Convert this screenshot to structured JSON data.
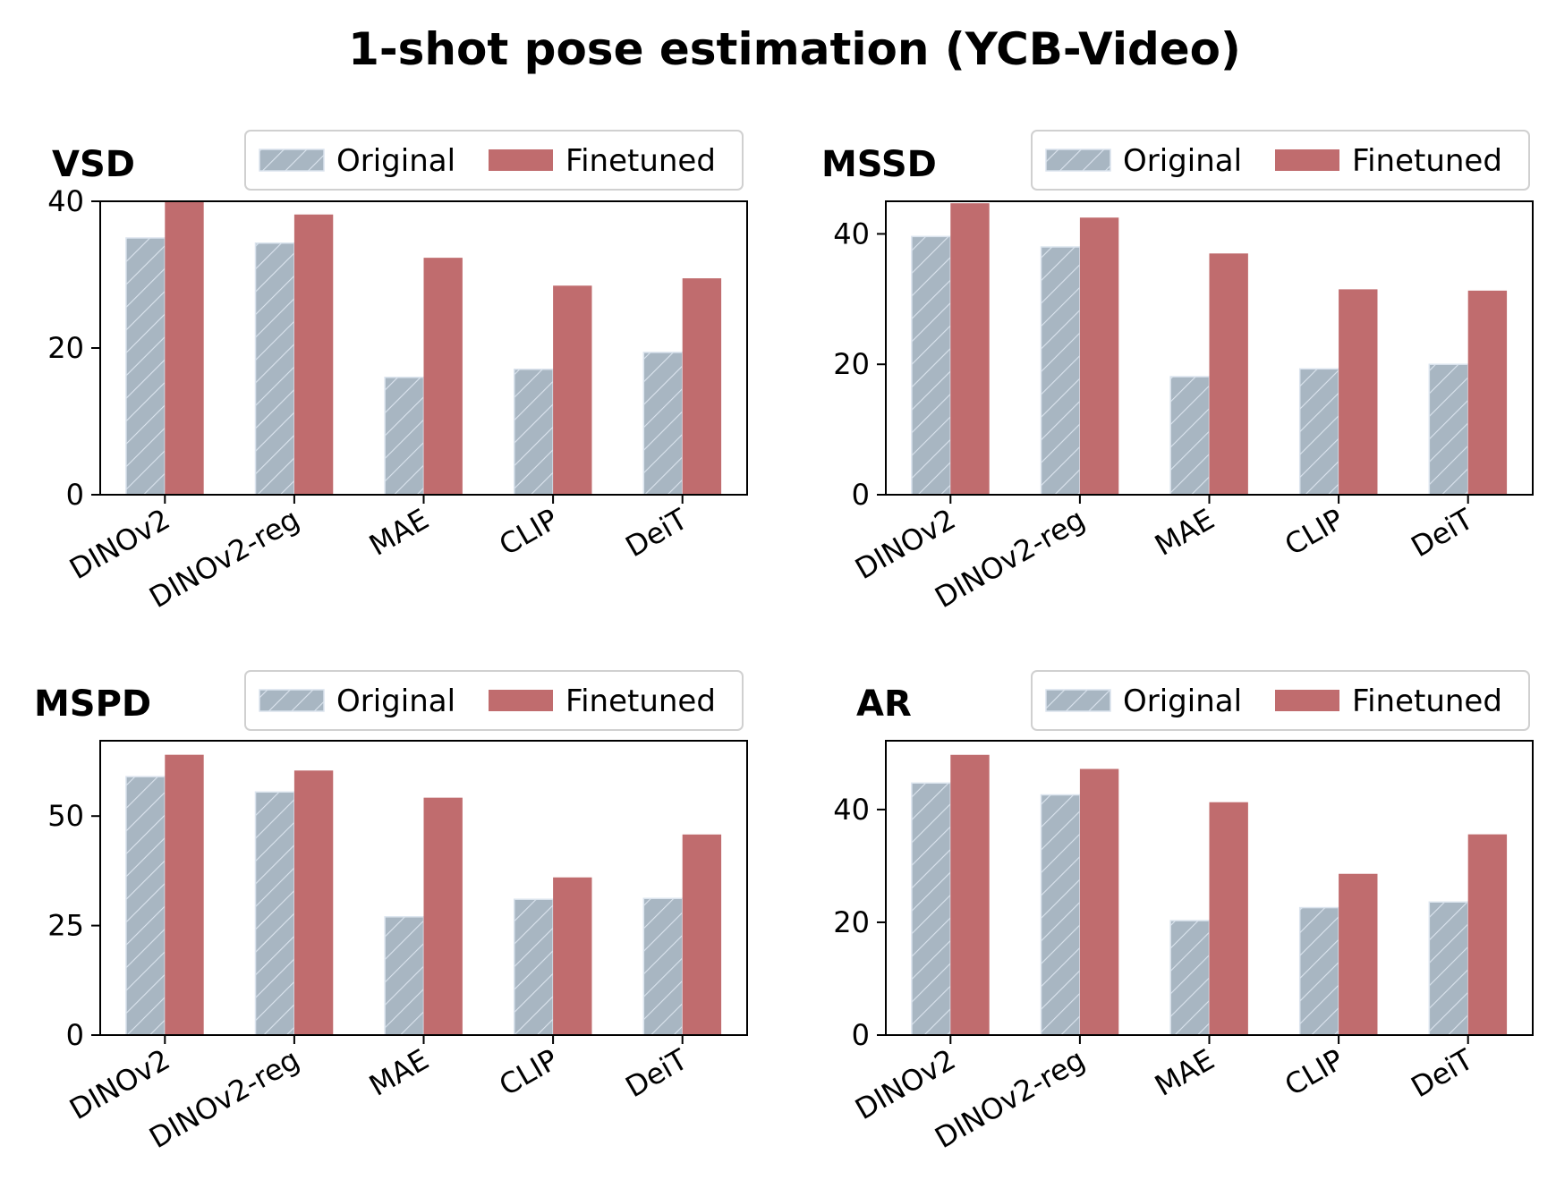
{
  "figure": {
    "title": "1-shot pose estimation (YCB-Video)"
  },
  "colors": {
    "original": "#a8b6c2",
    "original_edge": "#dbe4ee",
    "finetuned": "#c06c6e"
  },
  "legend": {
    "labels": [
      "Original",
      "Finetuned"
    ],
    "placement": "top-right (above each panel)"
  },
  "chart_data": [
    {
      "type": "bar",
      "title": "VSD",
      "categories": [
        "DINOv2",
        "DINOv2-reg",
        "MAE",
        "CLIP",
        "DeiT"
      ],
      "series": [
        {
          "name": "Original",
          "values": [
            35.0,
            34.3,
            16.0,
            17.1,
            19.4
          ]
        },
        {
          "name": "Finetuned",
          "values": [
            40.0,
            38.2,
            32.3,
            28.5,
            29.5
          ]
        }
      ],
      "ylim": [
        0,
        40.0
      ],
      "yticks": [
        0,
        20,
        40
      ]
    },
    {
      "type": "bar",
      "title": "MSSD",
      "categories": [
        "DINOv2",
        "DINOv2-reg",
        "MAE",
        "CLIP",
        "DeiT"
      ],
      "series": [
        {
          "name": "Original",
          "values": [
            39.6,
            38.0,
            18.1,
            19.3,
            20.0
          ]
        },
        {
          "name": "Finetuned",
          "values": [
            44.7,
            42.5,
            37.0,
            31.5,
            31.3
          ]
        }
      ],
      "ylim": [
        0,
        45.0
      ],
      "yticks": [
        0,
        20,
        40
      ]
    },
    {
      "type": "bar",
      "title": "MSPD",
      "categories": [
        "DINOv2",
        "DINOv2-reg",
        "MAE",
        "CLIP",
        "DeiT"
      ],
      "series": [
        {
          "name": "Original",
          "values": [
            59.0,
            55.5,
            27.0,
            31.0,
            31.2
          ]
        },
        {
          "name": "Finetuned",
          "values": [
            64.0,
            60.4,
            54.2,
            36.0,
            45.8
          ]
        }
      ],
      "ylim": [
        0,
        67.2
      ],
      "yticks": [
        0,
        25,
        50
      ]
    },
    {
      "type": "bar",
      "title": "AR",
      "categories": [
        "DINOv2",
        "DINOv2-reg",
        "MAE",
        "CLIP",
        "DeiT"
      ],
      "series": [
        {
          "name": "Original",
          "values": [
            44.7,
            42.6,
            20.3,
            22.6,
            23.6
          ]
        },
        {
          "name": "Finetuned",
          "values": [
            49.7,
            47.2,
            41.3,
            28.6,
            35.6
          ]
        }
      ],
      "ylim": [
        0,
        52.2
      ],
      "yticks": [
        0,
        20,
        40
      ]
    }
  ]
}
